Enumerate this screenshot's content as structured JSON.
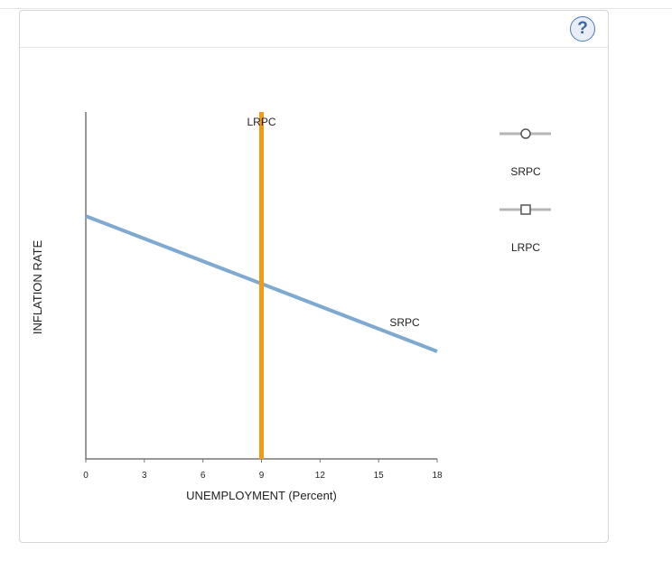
{
  "help_button": {
    "label": "?"
  },
  "chart_data": {
    "type": "line",
    "xlabel": "UNEMPLOYMENT (Percent)",
    "ylabel": "INFLATION RATE",
    "xlim": [
      0,
      18
    ],
    "x_ticks": [
      "0",
      "3",
      "6",
      "9",
      "12",
      "15",
      "18"
    ],
    "y_ticks": [],
    "ylim": [
      0,
      10
    ],
    "grid": false,
    "series": [
      {
        "name": "SRPC",
        "color": "#7ea9d1",
        "marker": "circle",
        "points": [
          [
            0,
            7.0
          ],
          [
            18,
            3.1
          ]
        ]
      },
      {
        "name": "LRPC",
        "color": "#f39c12",
        "marker": "square",
        "points": [
          [
            9,
            0
          ],
          [
            9,
            10
          ]
        ]
      }
    ],
    "legend": {
      "placement": "right",
      "items": [
        {
          "label": "SRPC",
          "marker": "circle"
        },
        {
          "label": "LRPC",
          "marker": "square"
        }
      ]
    }
  }
}
